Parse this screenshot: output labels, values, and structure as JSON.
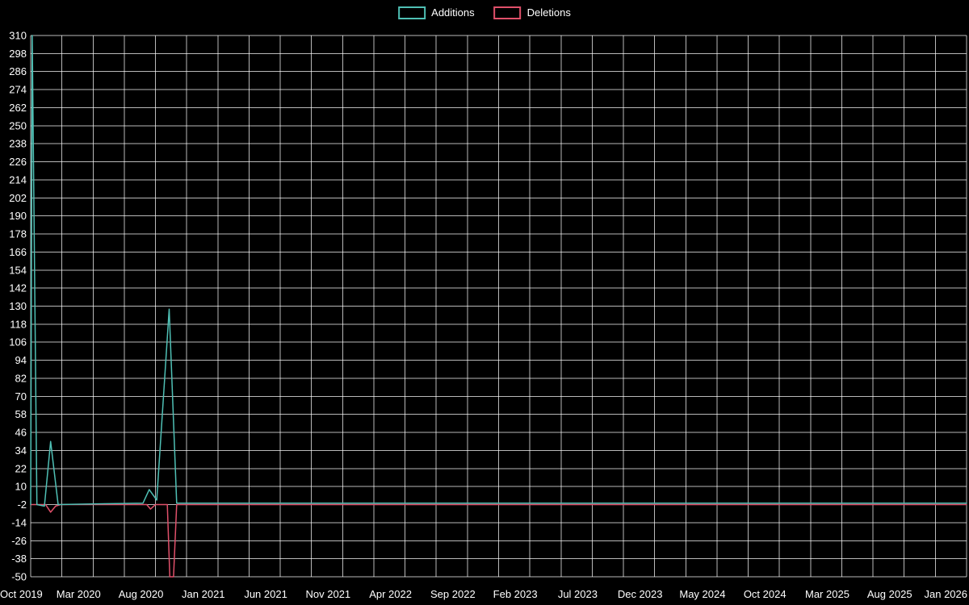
{
  "chart_data": {
    "type": "line",
    "title": "",
    "legend": [
      {
        "label": "Additions",
        "color": "#4fc0b5"
      },
      {
        "label": "Deletions",
        "color": "#e0506a"
      }
    ],
    "x_axis": {
      "labels": [
        "Oct 2019",
        "Mar 2020",
        "Aug 2020",
        "Jan 2021",
        "Jun 2021",
        "Nov 2021",
        "Apr 2022",
        "Sep 2022",
        "Feb 2023",
        "Jul 2023",
        "Dec 2023",
        "May 2024",
        "Oct 2024",
        "Mar 2025",
        "Aug 2025",
        "Jan 2026"
      ],
      "label_month_step": 5,
      "total_months": 75
    },
    "y_axis": {
      "min": -50,
      "max": 310,
      "tick_step": 12,
      "ticks": [
        310,
        298,
        286,
        274,
        262,
        250,
        238,
        226,
        214,
        202,
        190,
        178,
        166,
        154,
        142,
        130,
        118,
        106,
        94,
        82,
        70,
        58,
        46,
        34,
        22,
        10,
        -2,
        -14,
        -26,
        -38,
        -50
      ]
    },
    "grid": {
      "v_month_step": 2.5,
      "grid_on": true
    },
    "series": [
      {
        "name": "Deletions",
        "color": "#e0506a",
        "points": [
          [
            0,
            -2
          ],
          [
            1.2,
            -2
          ],
          [
            1.6,
            -7
          ],
          [
            2.0,
            -3
          ],
          [
            2.4,
            -2
          ],
          [
            9.3,
            -2
          ],
          [
            9.6,
            -5
          ],
          [
            10.0,
            -2
          ],
          [
            10.95,
            -2
          ],
          [
            11.15,
            -50
          ],
          [
            11.45,
            -50
          ],
          [
            11.7,
            -2
          ],
          [
            75,
            -2
          ]
        ]
      },
      {
        "name": "Additions",
        "color": "#4fc0b5",
        "points": [
          [
            0,
            -2
          ],
          [
            0.12,
            310
          ],
          [
            0.5,
            -2
          ],
          [
            1.1,
            -3
          ],
          [
            1.6,
            40
          ],
          [
            2.2,
            -2
          ],
          [
            9.0,
            -1
          ],
          [
            9.5,
            8
          ],
          [
            10.1,
            1
          ],
          [
            11.1,
            128
          ],
          [
            11.7,
            -1
          ],
          [
            75,
            -1
          ]
        ]
      }
    ]
  }
}
